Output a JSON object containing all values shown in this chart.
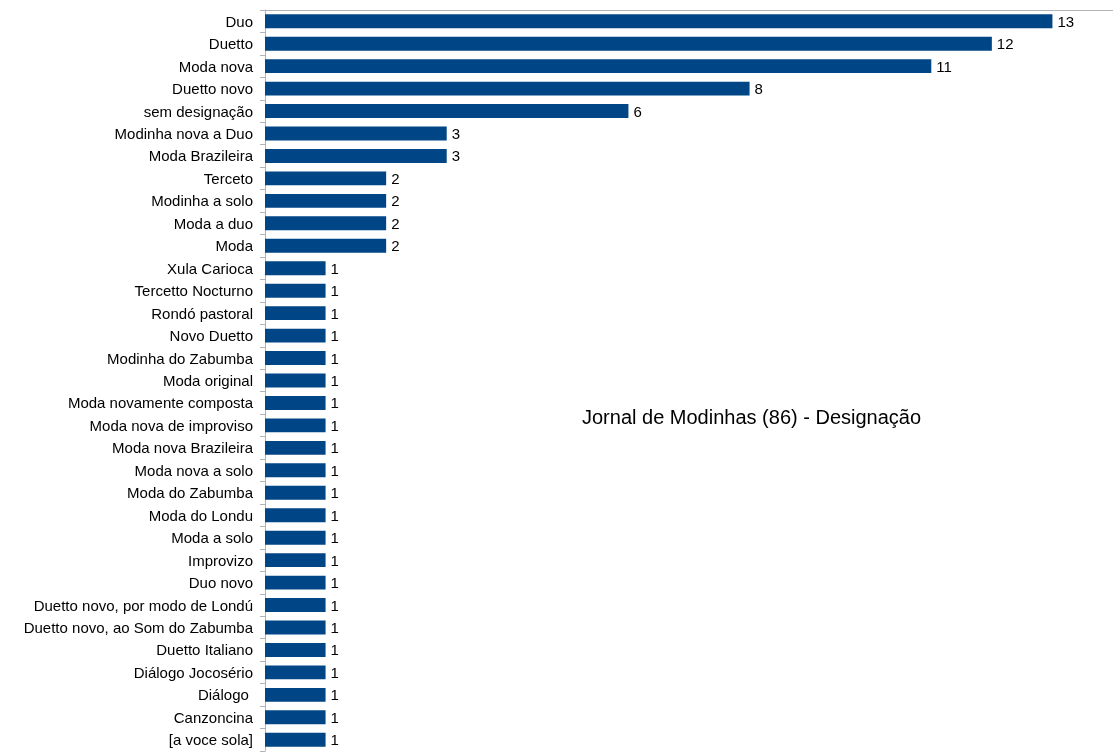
{
  "chart_data": {
    "type": "bar",
    "orientation": "horizontal",
    "title": "Jornal de Modinhas (86) - Designação",
    "categories": [
      "Duo",
      "Duetto",
      "Moda nova",
      "Duetto novo",
      "sem designação",
      "Modinha nova a Duo",
      "Moda Brazileira",
      "Terceto",
      "Modinha a solo",
      "Moda a duo",
      "Moda",
      "Xula Carioca",
      "Tercetto Nocturno",
      "Rondó pastoral",
      "Novo Duetto",
      "Modinha do Zabumba",
      "Moda original",
      "Moda novamente composta",
      "Moda nova de improviso",
      "Moda nova Brazileira",
      "Moda nova a solo",
      "Moda do Zabumba",
      "Moda do Londu",
      "Moda a solo",
      "Improvizo",
      "Duo novo",
      "Duetto novo, por modo de Londú",
      "Duetto novo, ao Som do Zabumba",
      "Duetto Italiano",
      "Diálogo Jocosério",
      "Diálogo ",
      "Canzoncina",
      "[a voce sola]"
    ],
    "values": [
      13,
      12,
      11,
      8,
      6,
      3,
      3,
      2,
      2,
      2,
      2,
      1,
      1,
      1,
      1,
      1,
      1,
      1,
      1,
      1,
      1,
      1,
      1,
      1,
      1,
      1,
      1,
      1,
      1,
      1,
      1,
      1,
      1
    ],
    "color": "#004586",
    "data_labels": true,
    "xlim": [
      0,
      14
    ],
    "tick_labels": "y"
  }
}
